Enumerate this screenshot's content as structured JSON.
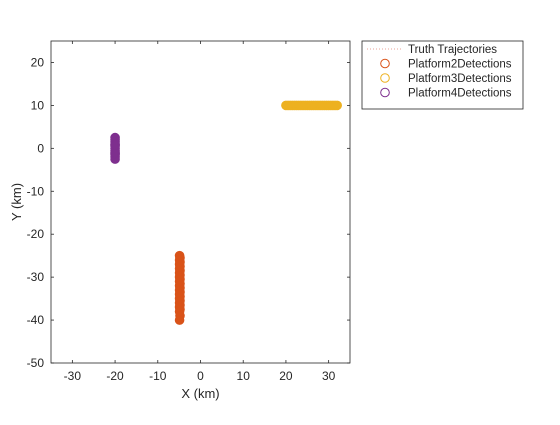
{
  "chart_data": {
    "type": "scatter",
    "title": "",
    "xlabel": "X (km)",
    "ylabel": "Y (km)",
    "xlim": [
      -35,
      35
    ],
    "ylim": [
      -50,
      25
    ],
    "xticks": [
      -30,
      -20,
      -10,
      0,
      10,
      20,
      30
    ],
    "yticks": [
      -50,
      -40,
      -30,
      -20,
      -10,
      0,
      10,
      20
    ],
    "xtick_labels": [
      "-30",
      "-20",
      "-10",
      "0",
      "10",
      "20",
      "30"
    ],
    "ytick_labels": [
      "-50",
      "-40",
      "-30",
      "-20",
      "-10",
      "0",
      "10",
      "20"
    ],
    "grid": false,
    "legend_position": "outside top-right",
    "series": [
      {
        "name": "Truth Trajectories",
        "kind": "line",
        "style": "dotted",
        "color": "#e8a39a",
        "x": [],
        "y": []
      },
      {
        "name": "Platform2Detections",
        "kind": "marker",
        "color": "#d95319",
        "x": [
          -4.9,
          -4.8,
          -4.9,
          -4.8,
          -4.9,
          -4.8,
          -4.9,
          -4.8,
          -4.9,
          -4.8,
          -4.9,
          -4.8,
          -4.9,
          -4.8,
          -4.9,
          -4.8,
          -4.9,
          -4.8,
          -4.9,
          -4.8,
          -4.9,
          -4.8,
          -4.9,
          -4.8,
          -4.9,
          -4.8,
          -4.9,
          -4.8,
          -4.9
        ],
        "y": [
          -25,
          -25.5,
          -26,
          -26.5,
          -27,
          -27.5,
          -28,
          -28.5,
          -29,
          -29.5,
          -30,
          -30.5,
          -31,
          -31.5,
          -32,
          -32.5,
          -33,
          -33.5,
          -34,
          -34.5,
          -35,
          -35.5,
          -36,
          -36.5,
          -37,
          -37.5,
          -38,
          -39,
          -40
        ]
      },
      {
        "name": "Platform3Detections",
        "kind": "marker",
        "color": "#edb120",
        "x": [
          20,
          20.5,
          21,
          21.5,
          22,
          22.5,
          23,
          23.5,
          24,
          24.5,
          25,
          25.5,
          26,
          26.5,
          27,
          27.5,
          28,
          28.5,
          29,
          29.5,
          30,
          30.5,
          31,
          31.5,
          32
        ],
        "y": [
          10,
          10,
          10,
          10,
          10,
          10,
          10,
          10,
          10,
          10,
          10,
          10,
          10,
          10,
          10,
          10,
          10,
          10,
          10,
          10,
          10,
          10,
          10,
          10,
          10
        ]
      },
      {
        "name": "Platform4Detections",
        "kind": "marker",
        "color": "#7e2f8e",
        "x": [
          -20,
          -20,
          -20,
          -20,
          -20,
          -20,
          -20,
          -20,
          -20,
          -20,
          -20,
          -20,
          -20
        ],
        "y": [
          2.5,
          2,
          1.5,
          1,
          0.5,
          0,
          -0.5,
          -1,
          -1.5,
          -2,
          -2.5,
          -1.2,
          0.8
        ]
      }
    ]
  }
}
